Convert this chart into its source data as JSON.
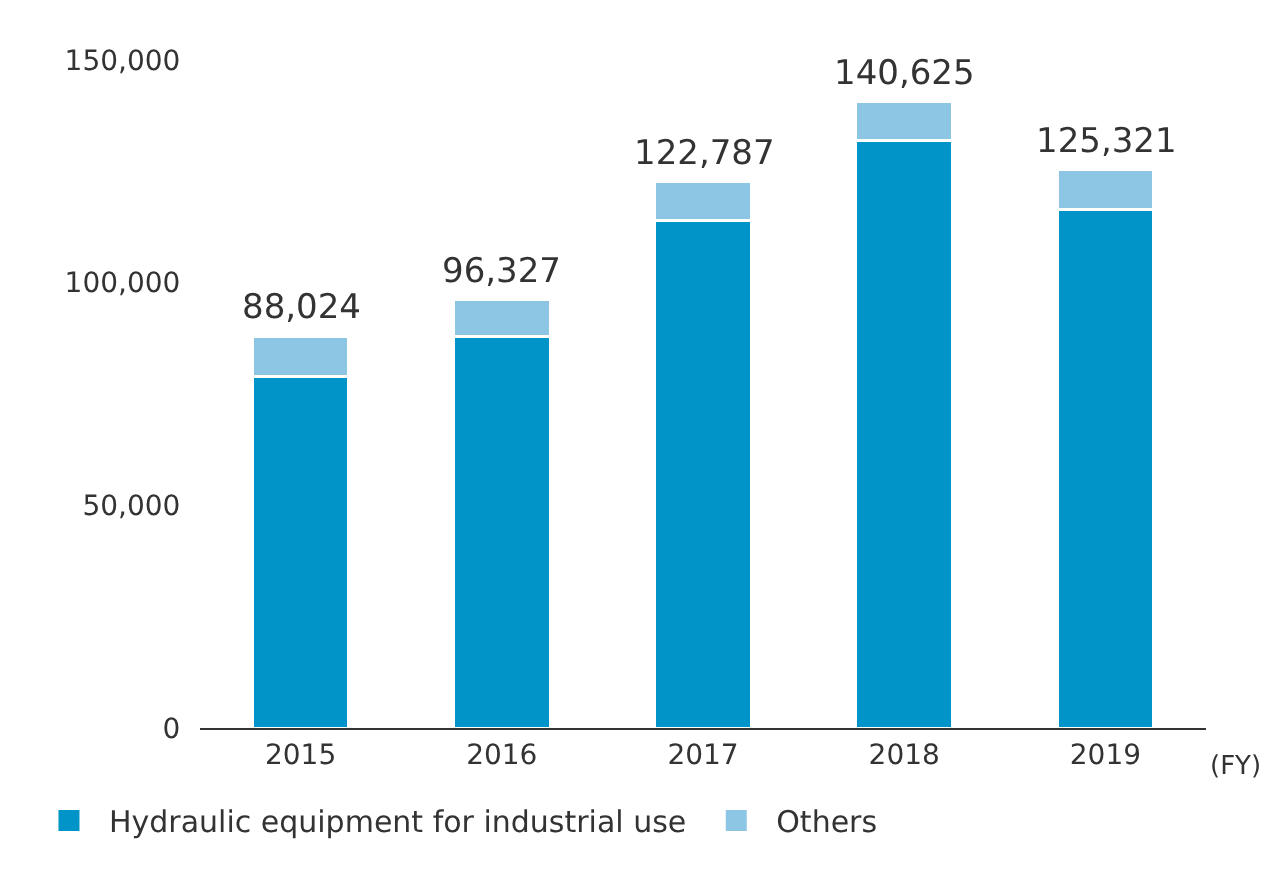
{
  "chart_data": {
    "type": "bar",
    "stacked": true,
    "xlabel": "(FY)",
    "categories": [
      "2015",
      "2016",
      "2017",
      "2018",
      "2019"
    ],
    "series": [
      {
        "name": "Hydraulic equipment for industrial use",
        "color": "#0094c8",
        "values": [
          79000,
          88000,
          114000,
          132000,
          116500
        ]
      },
      {
        "name": "Others",
        "color": "#8cc6e4",
        "values": [
          9024,
          8327,
          8787,
          8625,
          8821
        ]
      }
    ],
    "totals": [
      "88,024",
      "96,327",
      "122,787",
      "140,625",
      "125,321"
    ],
    "ylim": [
      0,
      150000
    ],
    "yticks": [
      {
        "value": 0,
        "label": "0"
      },
      {
        "value": 50000,
        "label": "50,000"
      },
      {
        "value": 100000,
        "label": "100,000"
      },
      {
        "value": 150000,
        "label": "150,000"
      }
    ],
    "grid": false,
    "legend": "bottom left"
  }
}
